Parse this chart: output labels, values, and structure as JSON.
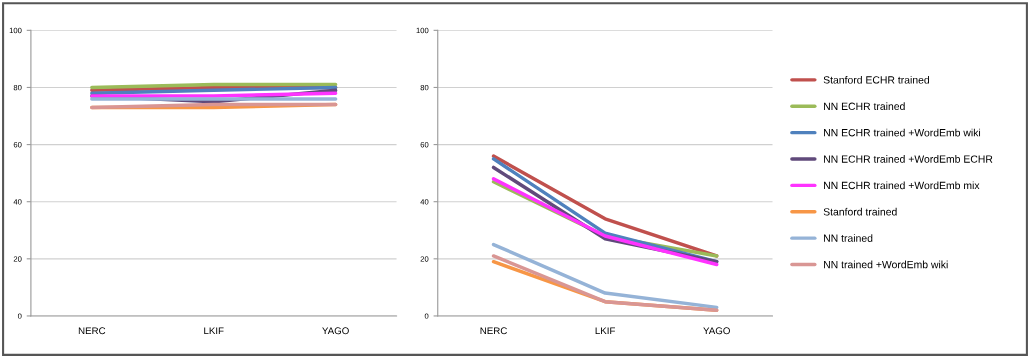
{
  "chart_data": [
    {
      "type": "line",
      "categories": [
        "NERC",
        "LKIF",
        "YAGO"
      ],
      "ylim": [
        0,
        100
      ],
      "yticks": [
        0,
        20,
        40,
        60,
        80,
        100
      ],
      "grid": "y",
      "legend": false,
      "marker": "none",
      "line_style": "solid",
      "series": [
        {
          "color": "#c0504d",
          "values": [
            79,
            80,
            80
          ]
        },
        {
          "color": "#9bbb59",
          "values": [
            80,
            81,
            81
          ]
        },
        {
          "color": "#4f81bd",
          "values": [
            78,
            79,
            80
          ]
        },
        {
          "color": "#604a7b",
          "values": [
            77,
            75,
            79
          ]
        },
        {
          "color": "#ff33ff",
          "values": [
            77,
            77,
            78
          ]
        },
        {
          "color": "#f79646",
          "values": [
            73,
            73,
            74
          ]
        },
        {
          "color": "#95b3d7",
          "values": [
            76,
            76,
            76
          ]
        },
        {
          "color": "#d99694",
          "values": [
            73,
            74,
            74
          ]
        }
      ]
    },
    {
      "type": "line",
      "categories": [
        "NERC",
        "LKIF",
        "YAGO"
      ],
      "ylim": [
        0,
        100
      ],
      "yticks": [
        0,
        20,
        40,
        60,
        80,
        100
      ],
      "grid": "y",
      "legend": "right",
      "marker": "none",
      "line_style": "solid",
      "series": [
        {
          "name": "Stanford ECHR trained",
          "color": "#c0504d",
          "values": [
            56,
            34,
            21
          ]
        },
        {
          "name": "NN ECHR trained",
          "color": "#9bbb59",
          "values": [
            47,
            28,
            21
          ]
        },
        {
          "name": "NN ECHR trained +WordEmb wiki",
          "color": "#4f81bd",
          "values": [
            55,
            29,
            19
          ]
        },
        {
          "name": "NN ECHR trained +WordEmb ECHR",
          "color": "#604a7b",
          "values": [
            52,
            27,
            19
          ]
        },
        {
          "name": "NN ECHR trained +WordEmb mix",
          "color": "#ff33ff",
          "values": [
            48,
            28,
            18
          ]
        },
        {
          "name": "Stanford trained",
          "color": "#f79646",
          "values": [
            19,
            5,
            2
          ]
        },
        {
          "name": "NN trained",
          "color": "#95b3d7",
          "values": [
            25,
            8,
            3
          ]
        },
        {
          "name": "NN trained +WordEmb wiki",
          "color": "#d99694",
          "values": [
            21,
            5,
            2
          ]
        }
      ]
    }
  ]
}
